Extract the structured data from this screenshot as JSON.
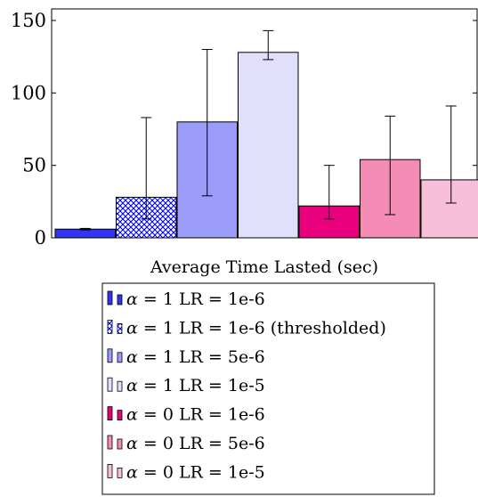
{
  "chart_data": {
    "type": "bar",
    "title": "",
    "xlabel": "Average Time Lasted (sec)",
    "ylabel": "",
    "ylim": [
      0,
      158
    ],
    "yticks": [
      0,
      50,
      100,
      150
    ],
    "grid": "none",
    "legend_position": "below",
    "series": [
      {
        "name": "α = 1 LR = 1e-6",
        "alpha_symbol": "α",
        "label_rest": " = 1 LR = 1e-6",
        "value": 6,
        "error_low": 5.5,
        "error_high": 6.5,
        "color": "#3333f5",
        "pattern": "solid"
      },
      {
        "name": "α = 1 LR = 1e-6 (thresholded)",
        "alpha_symbol": "α",
        "label_rest": " = 1 LR = 1e-6 (thresholded)",
        "value": 28,
        "error_low": 13,
        "error_high": 83,
        "color": "#0000ff",
        "pattern": "crosshatch"
      },
      {
        "name": "α = 1 LR = 5e-6",
        "alpha_symbol": "α",
        "label_rest": " = 1 LR = 5e-6",
        "value": 80,
        "error_low": 29,
        "error_high": 130,
        "color": "#9b9bfa",
        "pattern": "solid"
      },
      {
        "name": "α = 1 LR = 1e-5",
        "alpha_symbol": "α",
        "label_rest": " = 1 LR = 1e-5",
        "value": 128,
        "error_low": 123,
        "error_high": 143,
        "color": "#e0e0fc",
        "pattern": "solid"
      },
      {
        "name": "α = 0 LR = 1e-6",
        "alpha_symbol": "α",
        "label_rest": " = 0 LR = 1e-6",
        "value": 22,
        "error_low": 13,
        "error_high": 50,
        "color": "#e8007d",
        "pattern": "solid"
      },
      {
        "name": "α = 0 LR = 5e-6",
        "alpha_symbol": "α",
        "label_rest": " = 0 LR = 5e-6",
        "value": 54,
        "error_low": 16,
        "error_high": 84,
        "color": "#f48cb6",
        "pattern": "solid"
      },
      {
        "name": "α = 0 LR = 1e-5",
        "alpha_symbol": "α",
        "label_rest": " = 0 LR = 1e-5",
        "value": 40,
        "error_low": 24,
        "error_high": 91,
        "color": "#f8c0d8",
        "pattern": "solid"
      }
    ]
  }
}
